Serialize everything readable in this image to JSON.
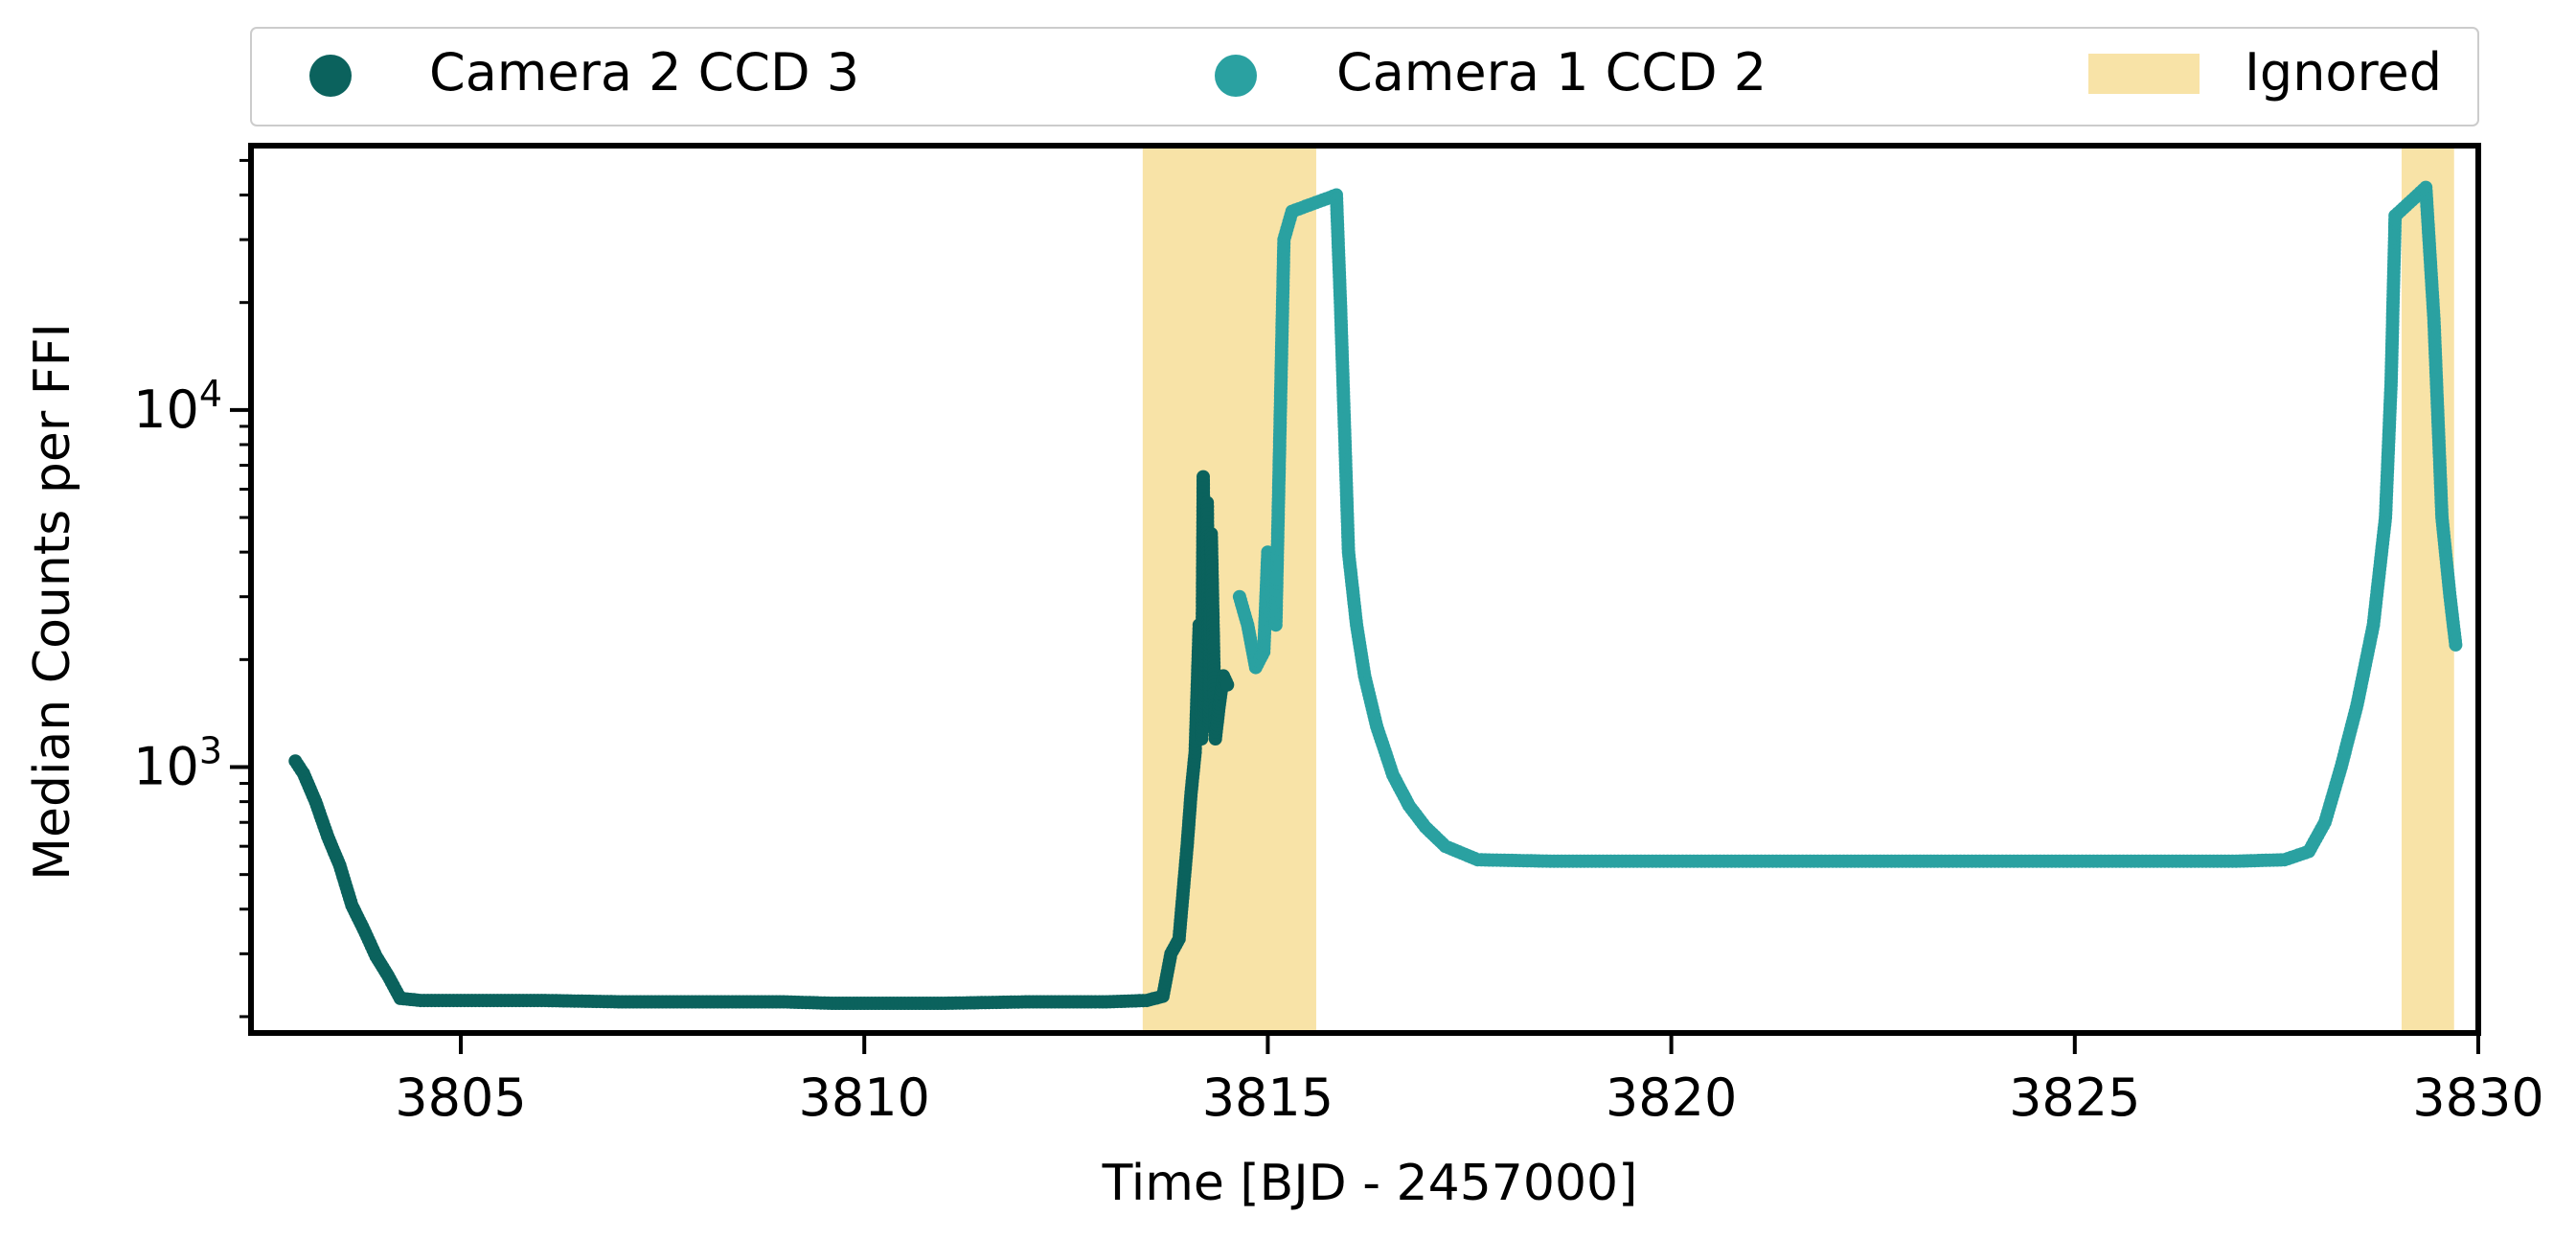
{
  "chart_data": {
    "type": "scatter",
    "title": "",
    "xlabel": "Time [BJD - 2457000]",
    "ylabel": "Median Counts per FFI",
    "xlim": [
      3802.4,
      3830.0
    ],
    "ylim": [
      180,
      55000
    ],
    "yscale": "log",
    "x_ticks": [
      3805,
      3810,
      3815,
      3820,
      3825,
      3830
    ],
    "x_tick_labels": [
      "3805",
      "3810",
      "3815",
      "3820",
      "3825",
      "3830"
    ],
    "y_ticks": [
      1000,
      10000
    ],
    "y_tick_bases": [
      "10",
      "10"
    ],
    "y_tick_exponents": [
      "3",
      "4"
    ],
    "legend_position": "top, above plot",
    "ignored_intervals": [
      [
        3813.45,
        3815.6
      ],
      [
        3829.05,
        3829.7
      ]
    ],
    "series": [
      {
        "name": "Camera 2 CCD 3",
        "color": "#0b625d",
        "points": [
          [
            3802.95,
            1040
          ],
          [
            3803.05,
            960
          ],
          [
            3803.2,
            800
          ],
          [
            3803.35,
            640
          ],
          [
            3803.5,
            530
          ],
          [
            3803.65,
            410
          ],
          [
            3803.8,
            350
          ],
          [
            3803.95,
            295
          ],
          [
            3804.1,
            260
          ],
          [
            3804.25,
            225
          ],
          [
            3804.5,
            222
          ],
          [
            3805.0,
            222
          ],
          [
            3806.0,
            222
          ],
          [
            3807.0,
            220
          ],
          [
            3808.0,
            220
          ],
          [
            3809.0,
            220
          ],
          [
            3809.6,
            218
          ],
          [
            3810.0,
            218
          ],
          [
            3811.0,
            218
          ],
          [
            3812.0,
            220
          ],
          [
            3813.0,
            220
          ],
          [
            3813.5,
            222
          ],
          [
            3813.7,
            228
          ],
          [
            3813.8,
            300
          ],
          [
            3813.9,
            330
          ],
          [
            3814.0,
            600
          ],
          [
            3814.05,
            850
          ],
          [
            3814.1,
            1100
          ],
          [
            3814.15,
            2500
          ],
          [
            3814.18,
            1200
          ],
          [
            3814.2,
            6500
          ],
          [
            3814.22,
            1400
          ],
          [
            3814.25,
            5500
          ],
          [
            3814.28,
            1300
          ],
          [
            3814.3,
            4500
          ],
          [
            3814.35,
            1200
          ],
          [
            3814.4,
            1500
          ],
          [
            3814.45,
            1800
          ],
          [
            3814.5,
            1700
          ]
        ]
      },
      {
        "name": "Camera 1 CCD 2",
        "color": "#2aa1a1",
        "points": [
          [
            3814.65,
            3000
          ],
          [
            3814.75,
            2500
          ],
          [
            3814.85,
            1900
          ],
          [
            3814.95,
            2100
          ],
          [
            3815.0,
            4000
          ],
          [
            3815.1,
            2500
          ],
          [
            3815.2,
            30000
          ],
          [
            3815.3,
            36000
          ],
          [
            3815.85,
            40000
          ],
          [
            3815.9,
            20000
          ],
          [
            3815.95,
            9000
          ],
          [
            3816.0,
            4000
          ],
          [
            3816.1,
            2500
          ],
          [
            3816.2,
            1800
          ],
          [
            3816.35,
            1300
          ],
          [
            3816.55,
            950
          ],
          [
            3816.75,
            780
          ],
          [
            3816.95,
            680
          ],
          [
            3817.2,
            600
          ],
          [
            3817.6,
            550
          ],
          [
            3818.5,
            545
          ],
          [
            3820.0,
            545
          ],
          [
            3822.0,
            545
          ],
          [
            3823.0,
            545
          ],
          [
            3823.3,
            545
          ],
          [
            3825.0,
            545
          ],
          [
            3827.0,
            545
          ],
          [
            3827.6,
            550
          ],
          [
            3827.9,
            580
          ],
          [
            3828.1,
            700
          ],
          [
            3828.3,
            1000
          ],
          [
            3828.5,
            1500
          ],
          [
            3828.7,
            2500
          ],
          [
            3828.85,
            5000
          ],
          [
            3828.92,
            12000
          ],
          [
            3828.97,
            35000
          ],
          [
            3829.35,
            42000
          ],
          [
            3829.45,
            18000
          ],
          [
            3829.55,
            5000
          ],
          [
            3829.65,
            3000
          ],
          [
            3829.72,
            2200
          ]
        ]
      }
    ],
    "ignored_label": "Ignored",
    "ignored_color": "#f8e3a7"
  }
}
